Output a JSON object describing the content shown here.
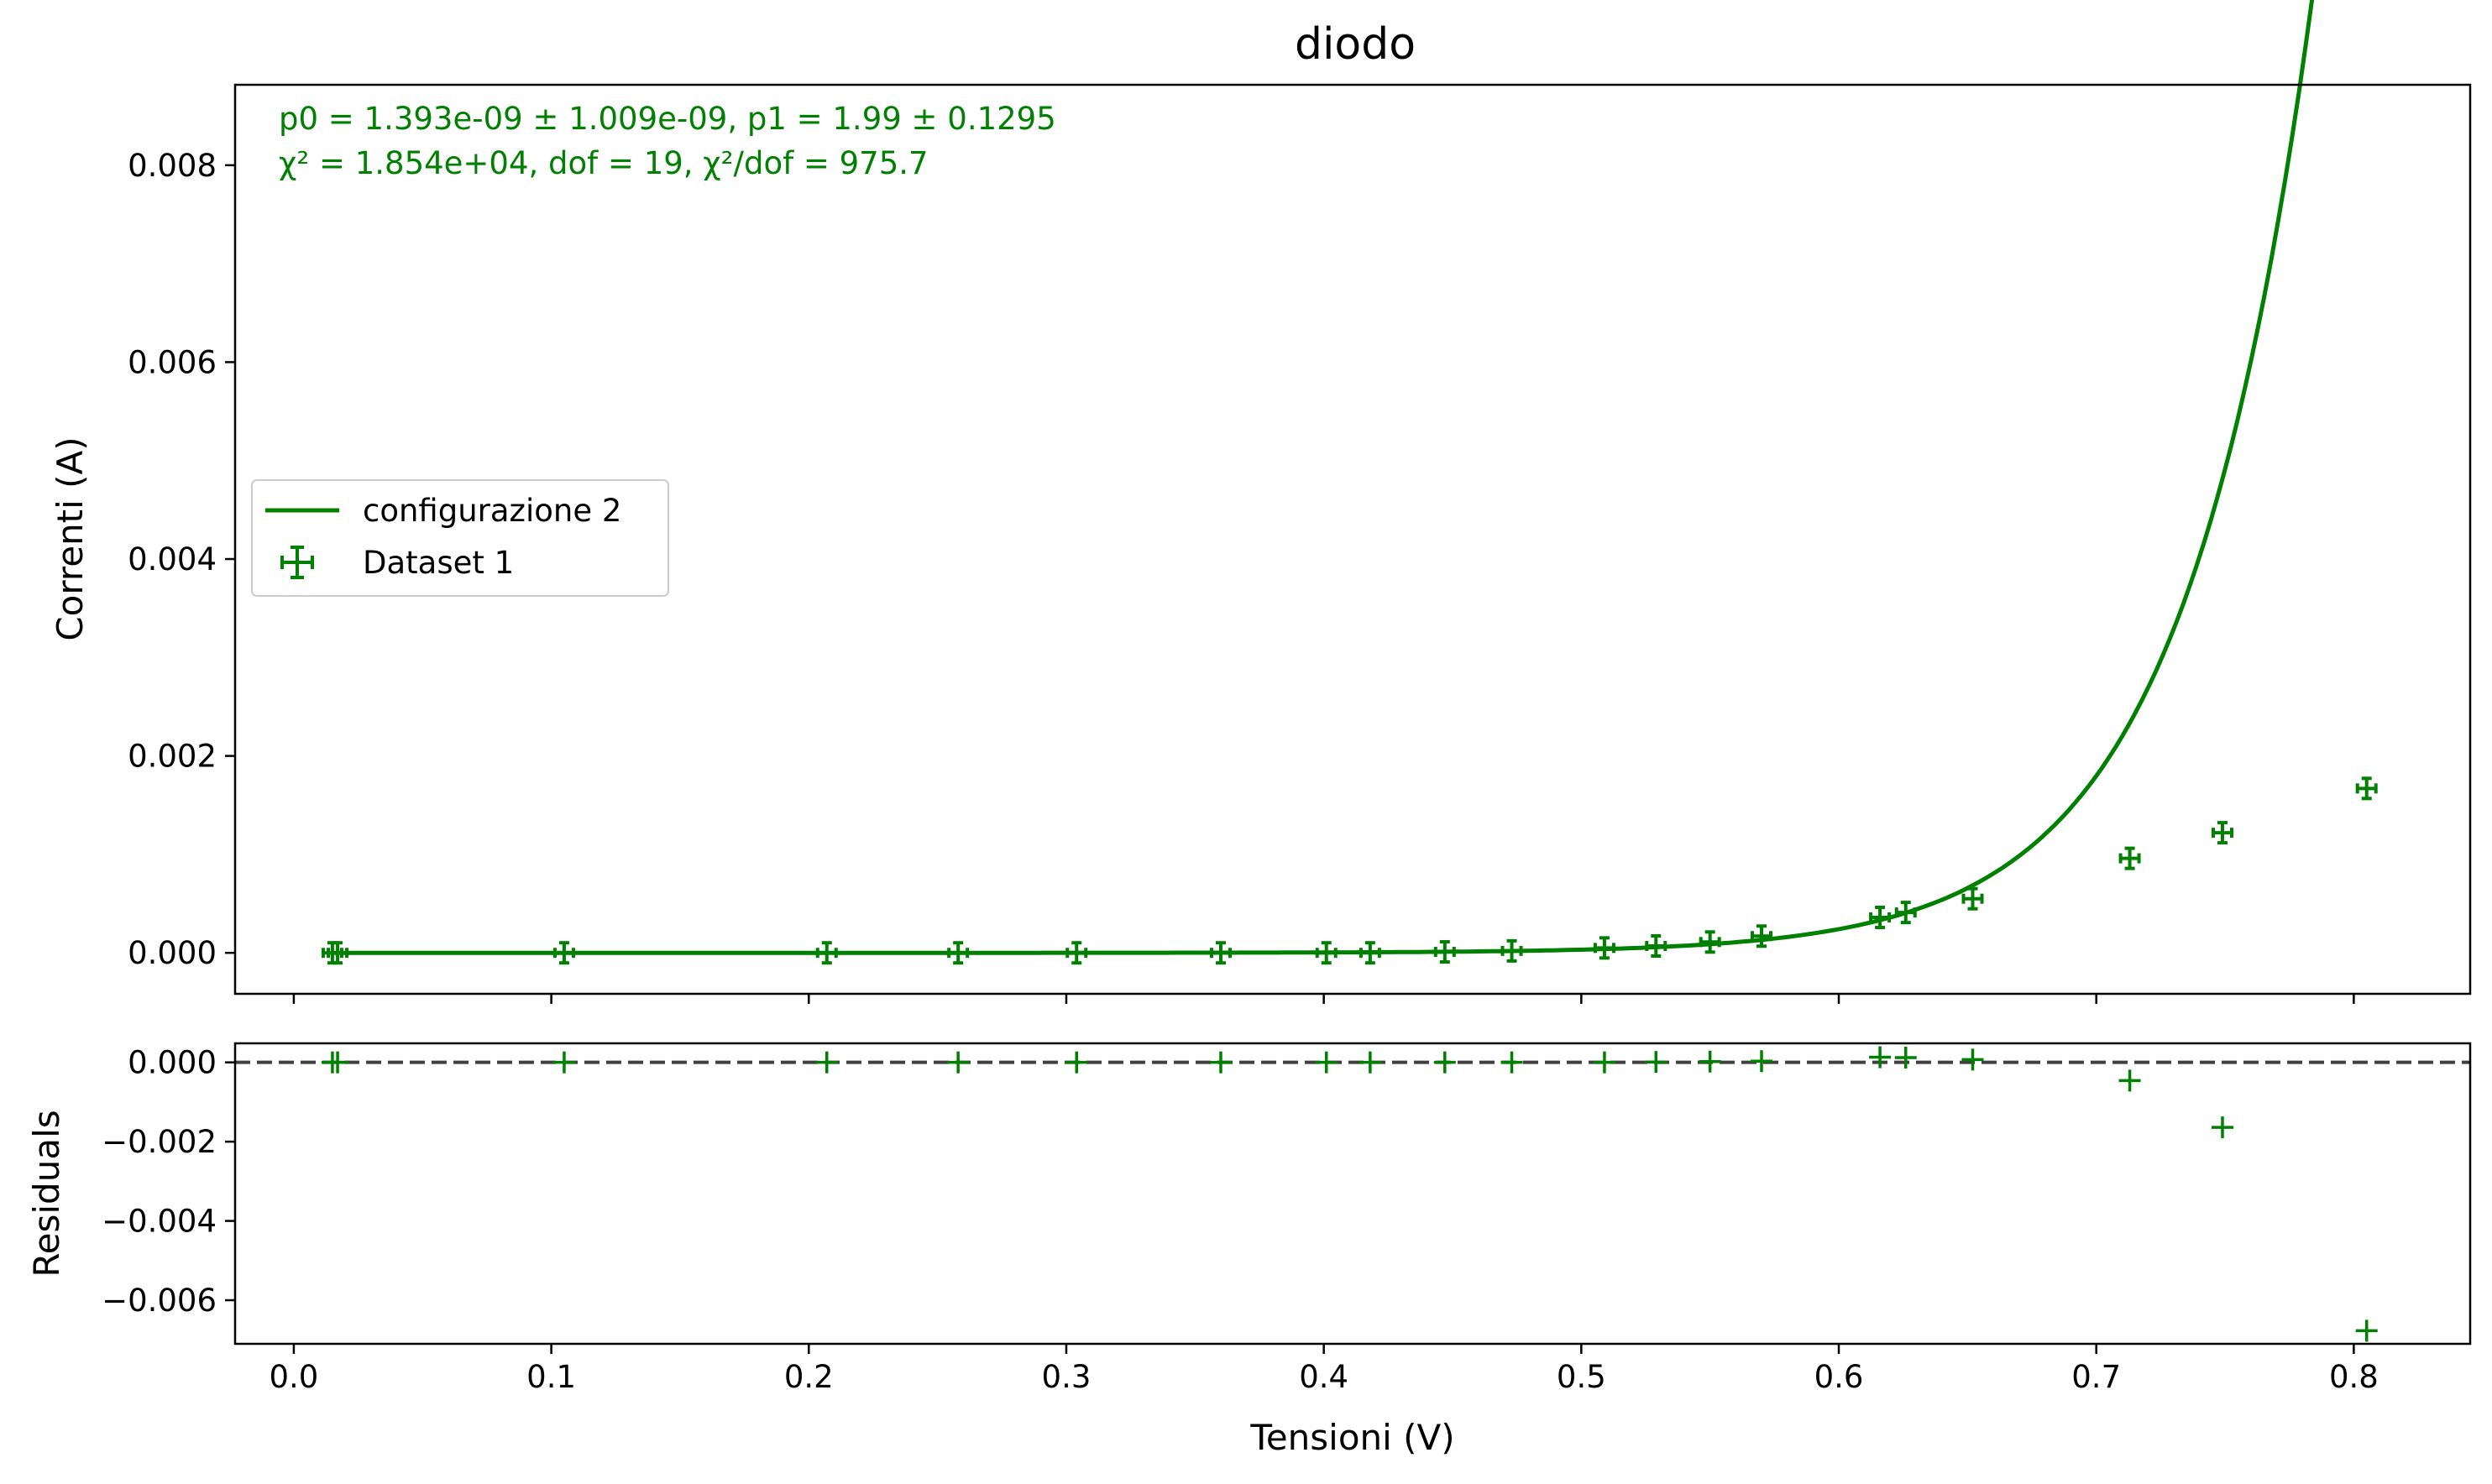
{
  "colors": {
    "series": "#008000",
    "zero_line": "#404040",
    "axis": "#000000",
    "legend_border": "#cccccc"
  },
  "chart_data": [
    {
      "panel": "main",
      "type": "scatter",
      "title": "diodo",
      "xlabel": "",
      "ylabel": "Correnti (A)",
      "xlim": [
        -0.0228,
        0.8452
      ],
      "ylim": [
        -0.000416,
        0.008817
      ],
      "xticks": [
        0.0,
        0.1,
        0.2,
        0.3,
        0.4,
        0.5,
        0.6,
        0.7,
        0.8
      ],
      "yticks": [
        0.0,
        0.002,
        0.004,
        0.006,
        0.008
      ],
      "ytick_labels": [
        "0.000",
        "0.002",
        "0.004",
        "0.006",
        "0.008"
      ],
      "grid": false,
      "legend_position": "center-left",
      "annotations": [
        "p0 = 1.393e-09 ± 1.009e-09, p1 = 1.99 ± 0.1295",
        "χ² = 1.854e+04, dof = 19, χ²/dof = 975.7"
      ],
      "fit": {
        "name": "configurazione 2",
        "model": "exponential",
        "p0": 1.393e-09,
        "p1": 1.99,
        "x_range": [
          0.015,
          0.805
        ]
      },
      "series": [
        {
          "name": "Dataset 1",
          "x": [
            0.015,
            0.017,
            0.105,
            0.207,
            0.258,
            0.304,
            0.36,
            0.401,
            0.418,
            0.447,
            0.473,
            0.509,
            0.529,
            0.55,
            0.57,
            0.616,
            0.626,
            0.652,
            0.713,
            0.749,
            0.805
          ],
          "y": [
            0.0,
            0.0,
            0.0,
            0.0,
            0.0,
            0.0,
            0.0,
            0.0,
            0.0,
            1e-05,
            2e-05,
            5e-05,
            7e-05,
            0.00011,
            0.00017,
            0.00036,
            0.00041,
            0.00055,
            0.00096,
            0.00122,
            0.00167
          ]
        }
      ]
    },
    {
      "panel": "residuals",
      "type": "scatter",
      "xlabel": "Tensioni (V)",
      "ylabel": "Residuals",
      "xlim": [
        -0.0228,
        0.8452
      ],
      "ylim": [
        -0.0071,
        0.00048
      ],
      "xticks": [
        0.0,
        0.1,
        0.2,
        0.3,
        0.4,
        0.5,
        0.6,
        0.7,
        0.8
      ],
      "xtick_labels": [
        "0.0",
        "0.1",
        "0.2",
        "0.3",
        "0.4",
        "0.5",
        "0.6",
        "0.7",
        "0.8"
      ],
      "yticks": [
        0.0,
        -0.002,
        -0.004,
        -0.006
      ],
      "ytick_labels": [
        "0.000",
        "−0.002",
        "−0.004",
        "−0.006"
      ],
      "zero_line": 0,
      "series": [
        {
          "name": "",
          "x": [
            0.015,
            0.017,
            0.105,
            0.207,
            0.258,
            0.304,
            0.36,
            0.401,
            0.418,
            0.447,
            0.473,
            0.509,
            0.529,
            0.55,
            0.57,
            0.616,
            0.626,
            0.652,
            0.713,
            0.749,
            0.805
          ],
          "y": [
            0.0,
            0.0,
            0.0,
            0.0,
            0.0,
            0.0,
            0.0,
            0.0,
            0.0,
            0.0,
            0.0,
            0.0,
            1e-05,
            2e-05,
            3e-05,
            0.00013,
            0.00012,
            7e-05,
            -0.00046,
            -0.00164,
            -0.00677
          ]
        }
      ]
    }
  ]
}
